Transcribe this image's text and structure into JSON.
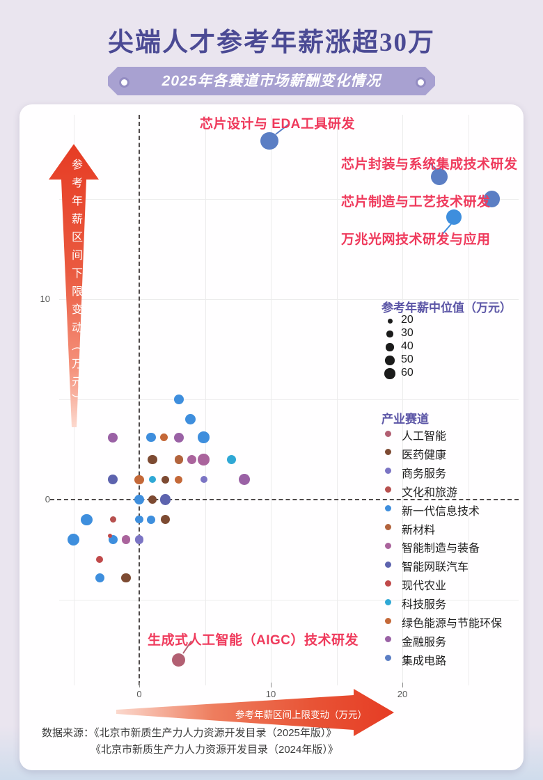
{
  "page": {
    "title": "尖端人才参考年薪涨超30万",
    "subtitle": "2025年各赛道市场薪酬变化情况",
    "source_prefix": "数据来源：",
    "source_lines": [
      "《北京市新质生产力人力资源开发目录（2025年版）》",
      "《北京市新质生产力人力资源开发目录（2024年版）》"
    ]
  },
  "chart_data": {
    "type": "scatter",
    "title": "2025年各赛道市场薪酬变化情况",
    "x_axis": {
      "label": "参考年薪区间上限变动（万元）",
      "ticks": [
        0,
        10,
        20
      ],
      "range": [
        -7.6,
        28.8
      ],
      "grid_step": 5
    },
    "y_axis": {
      "label": "参考年薪区间下限变动（万元）",
      "ticks": [
        0,
        10
      ],
      "range": [
        -9.3,
        19.2
      ],
      "grid_step": 5
    },
    "grid": "on",
    "legend_position": "right",
    "size_legend": {
      "title": "参考年薪中位值（万元）",
      "values": [
        20,
        30,
        40,
        50,
        60
      ]
    },
    "category_legend": {
      "title": "产业赛道",
      "items": [
        {
          "label": "人工智能",
          "color": "#b25f72"
        },
        {
          "label": "医药健康",
          "color": "#7d4a32"
        },
        {
          "label": "商务服务",
          "color": "#7b74c4"
        },
        {
          "label": "文化和旅游",
          "color": "#b7504f"
        },
        {
          "label": "新一代信息技术",
          "color": "#3e8edd"
        },
        {
          "label": "新材料",
          "color": "#b2633c"
        },
        {
          "label": "智能制造与装备",
          "color": "#aa639c"
        },
        {
          "label": "智能网联汽车",
          "color": "#5d63ae"
        },
        {
          "label": "现代农业",
          "color": "#c0494a"
        },
        {
          "label": "科技服务",
          "color": "#2fa8d5"
        },
        {
          "label": "绿色能源与节能环保",
          "color": "#c46838"
        },
        {
          "label": "金融服务",
          "color": "#9a61a5"
        },
        {
          "label": "集成电路",
          "color": "#5b7ec4"
        }
      ]
    },
    "points": [
      {
        "x": 3.0,
        "y": 5.0,
        "c": 4,
        "median_est": 55
      },
      {
        "x": 3.9,
        "y": 4.0,
        "c": 4,
        "median_est": 60
      },
      {
        "x": -2.0,
        "y": 3.1,
        "c": 11,
        "median_est": 55
      },
      {
        "x": 0.9,
        "y": 3.1,
        "c": 4,
        "median_est": 50
      },
      {
        "x": 1.9,
        "y": 3.1,
        "c": 10,
        "median_est": 40
      },
      {
        "x": 3.0,
        "y": 3.1,
        "c": 11,
        "median_est": 55
      },
      {
        "x": 4.9,
        "y": 3.1,
        "c": 4,
        "median_est": 65
      },
      {
        "x": 1.0,
        "y": 2.0,
        "c": 1,
        "median_est": 50
      },
      {
        "x": 3.0,
        "y": 2.0,
        "c": 5,
        "median_est": 45
      },
      {
        "x": 4.0,
        "y": 2.0,
        "c": 6,
        "median_est": 50
      },
      {
        "x": 4.9,
        "y": 2.0,
        "c": 6,
        "median_est": 65
      },
      {
        "x": 7.0,
        "y": 2.0,
        "c": 9,
        "median_est": 50
      },
      {
        "x": -2.0,
        "y": 1.0,
        "c": 7,
        "median_est": 55
      },
      {
        "x": 0.0,
        "y": 1.0,
        "c": 10,
        "median_est": 50
      },
      {
        "x": 1.0,
        "y": 1.0,
        "c": 9,
        "median_est": 35
      },
      {
        "x": 2.0,
        "y": 1.0,
        "c": 1,
        "median_est": 40
      },
      {
        "x": 3.0,
        "y": 1.0,
        "c": 10,
        "median_est": 40
      },
      {
        "x": 4.9,
        "y": 1.0,
        "c": 2,
        "median_est": 35
      },
      {
        "x": 8.0,
        "y": 1.0,
        "c": 11,
        "median_est": 62
      },
      {
        "x": 0.0,
        "y": 0.0,
        "c": 4,
        "median_est": 55
      },
      {
        "x": 1.0,
        "y": 0.0,
        "c": 1,
        "median_est": 45
      },
      {
        "x": 2.0,
        "y": 0.0,
        "c": 7,
        "median_est": 60
      },
      {
        "x": -4.0,
        "y": -1.0,
        "c": 4,
        "median_est": 65
      },
      {
        "x": -2.0,
        "y": -1.0,
        "c": 3,
        "median_est": 30
      },
      {
        "x": 0.0,
        "y": -1.0,
        "c": 4,
        "median_est": 40
      },
      {
        "x": 0.9,
        "y": -1.0,
        "c": 4,
        "median_est": 45
      },
      {
        "x": 2.0,
        "y": -1.0,
        "c": 1,
        "median_est": 50
      },
      {
        "x": -5.0,
        "y": -2.0,
        "c": 4,
        "median_est": 70
      },
      {
        "x": -2.0,
        "y": -2.0,
        "c": 4,
        "median_est": 50
      },
      {
        "x": -2.2,
        "y": -1.8,
        "c": 8,
        "median_est": 15
      },
      {
        "x": -1.0,
        "y": -2.0,
        "c": 6,
        "median_est": 45
      },
      {
        "x": 0.0,
        "y": -2.0,
        "c": 2,
        "median_est": 45
      },
      {
        "x": -3.0,
        "y": -3.0,
        "c": 8,
        "median_est": 35
      },
      {
        "x": -3.0,
        "y": -3.9,
        "c": 4,
        "median_est": 50
      },
      {
        "x": -1.0,
        "y": -3.9,
        "c": 1,
        "median_est": 50
      },
      {
        "x": 9.9,
        "y": 17.9,
        "c": 12,
        "median_est": 110,
        "ann": 0
      },
      {
        "x": 22.8,
        "y": 16.1,
        "c": 12,
        "median_est": 100,
        "ann": 1
      },
      {
        "x": 26.8,
        "y": 15.0,
        "c": 12,
        "median_est": 100,
        "ann": 2
      },
      {
        "x": 23.9,
        "y": 14.1,
        "c": 4,
        "median_est": 90,
        "ann": 3
      },
      {
        "x": 3.0,
        "y": -8.0,
        "c": 0,
        "median_est": 80,
        "ann": 4
      }
    ],
    "annotations": [
      {
        "text": "芯片设计与 EDA工具研发"
      },
      {
        "text": "芯片封装与系统集成技术研发"
      },
      {
        "text": "芯片制造与工艺技术研发"
      },
      {
        "text": "万兆光网技术研发与应用"
      },
      {
        "text": "生成式人工智能（AIGC）技术研发"
      }
    ]
  }
}
